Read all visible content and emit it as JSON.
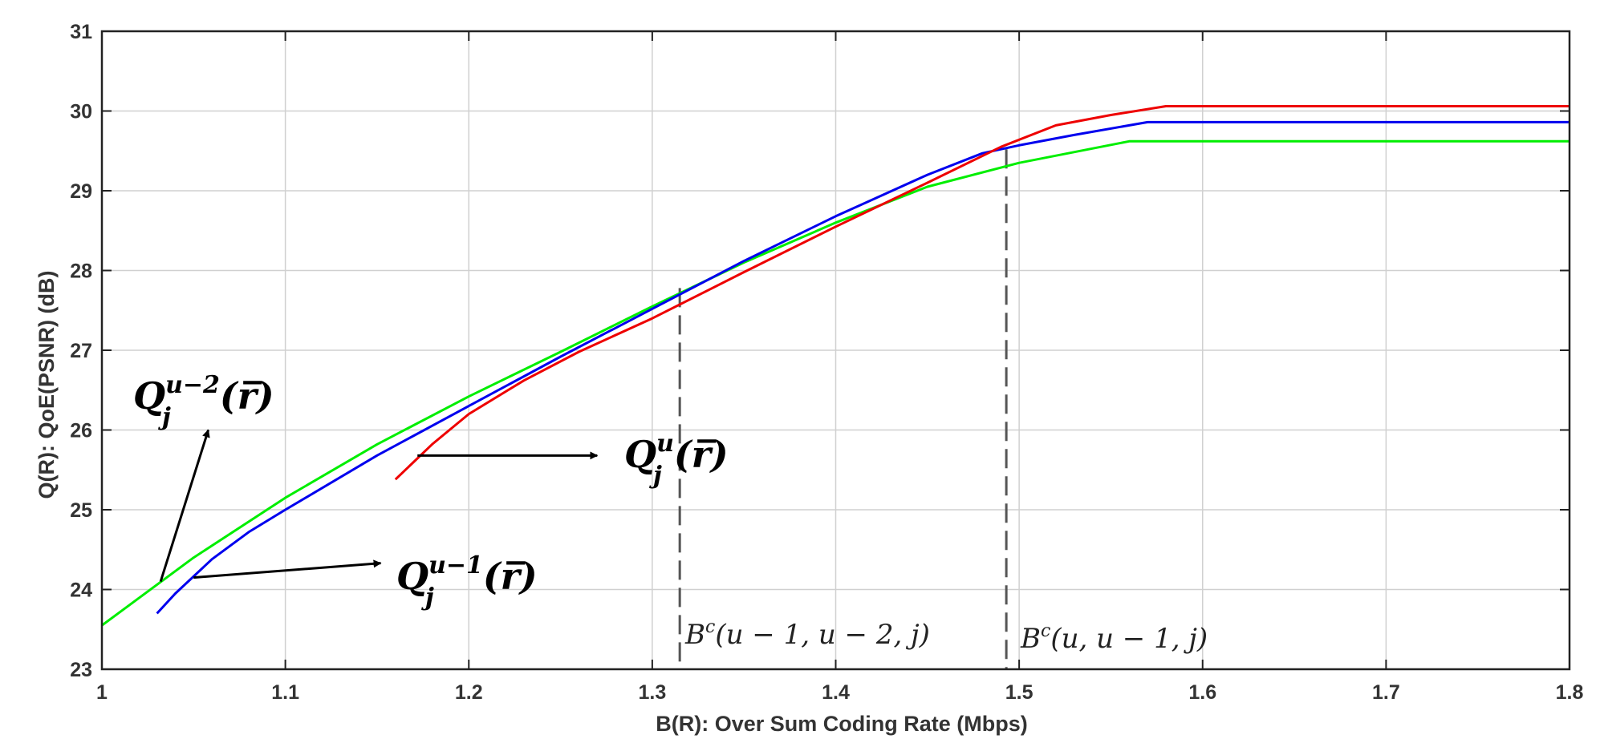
{
  "chart_data": {
    "type": "line",
    "xlabel": "B(R): Over Sum Coding Rate  (Mbps)",
    "ylabel": "Q(R): QoE(PSNR) (dB)",
    "xlim": [
      1,
      1.8
    ],
    "ylim": [
      23,
      31
    ],
    "xticks": [
      "1",
      "1.1",
      "1.2",
      "1.3",
      "1.4",
      "1.5",
      "1.6",
      "1.7",
      "1.8"
    ],
    "yticks": [
      "23",
      "24",
      "25",
      "26",
      "27",
      "28",
      "29",
      "30",
      "31"
    ],
    "grid": true,
    "series": [
      {
        "color": "#00ee00",
        "x": [
          1.0,
          1.05,
          1.1,
          1.15,
          1.2,
          1.25,
          1.3,
          1.35,
          1.4,
          1.45,
          1.5,
          1.56,
          1.8
        ],
        "y": [
          23.55,
          24.4,
          25.15,
          25.82,
          26.42,
          26.98,
          27.55,
          28.1,
          28.6,
          29.05,
          29.35,
          29.62,
          29.62
        ]
      },
      {
        "color": "#0000ee",
        "x": [
          1.03,
          1.04,
          1.06,
          1.08,
          1.1,
          1.15,
          1.2,
          1.25,
          1.3,
          1.35,
          1.4,
          1.45,
          1.48,
          1.5,
          1.53,
          1.57,
          1.8
        ],
        "y": [
          23.7,
          23.95,
          24.38,
          24.72,
          25.0,
          25.68,
          26.3,
          26.92,
          27.52,
          28.12,
          28.68,
          29.2,
          29.47,
          29.57,
          29.7,
          29.86,
          29.86
        ]
      },
      {
        "color": "#ee0000",
        "x": [
          1.16,
          1.18,
          1.2,
          1.23,
          1.26,
          1.3,
          1.35,
          1.4,
          1.45,
          1.49,
          1.52,
          1.55,
          1.58,
          1.8
        ],
        "y": [
          25.38,
          25.82,
          26.2,
          26.62,
          26.98,
          27.4,
          27.98,
          28.55,
          29.1,
          29.55,
          29.82,
          29.95,
          30.06,
          30.06
        ]
      }
    ],
    "vlines": [
      {
        "x": 1.315,
        "y_top": 27.78
      },
      {
        "x": 1.493,
        "y_top": 29.52
      }
    ],
    "annotations": {
      "q_u2": {
        "base": "Q",
        "sub": "j",
        "sup": "u−2",
        "arg": "(r̅)",
        "arrow_from": [
          1.032,
          24.1
        ],
        "arrow_to": [
          1.058,
          26.0
        ]
      },
      "q_u1": {
        "base": "Q",
        "sub": "j",
        "sup": "u−1",
        "arg": "(r̅)",
        "arrow_from": [
          1.05,
          24.15
        ],
        "arrow_to": [
          1.152,
          24.33
        ]
      },
      "q_u": {
        "base": "Q",
        "sub": "j",
        "sup": "u",
        "arg": "(r̅)",
        "arrow_from": [
          1.172,
          25.68
        ],
        "arrow_to": [
          1.27,
          25.68
        ]
      },
      "bc1": {
        "base": "B",
        "sup": "c",
        "arg": "(u − 1, u − 2, j)"
      },
      "bc2": {
        "base": "B",
        "sup": "c",
        "arg": "(u, u − 1, j)"
      }
    }
  }
}
